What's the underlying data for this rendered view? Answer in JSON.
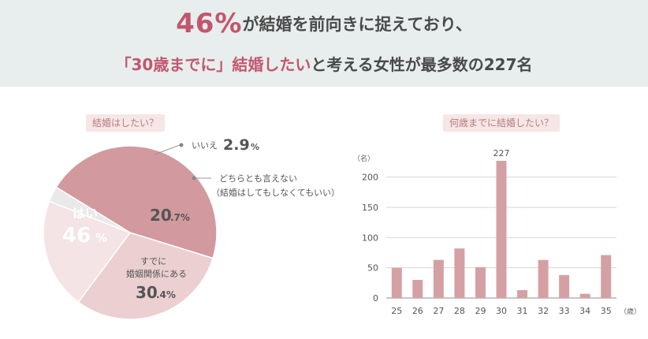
{
  "headline": {
    "line1_big": "46%",
    "line1_rest": "が結婚を前向きに捉えており、",
    "line2_accent": "「30歳までに」結婚したい",
    "line2_rest": "と考える女性が最多数の227名"
  },
  "colors": {
    "header_bg": "#e7eeed",
    "accent": "#c2566f",
    "pie_yes": "#d29a9e",
    "pie_married": "#ebcfd1",
    "pie_either": "#f4e4e5",
    "pie_no": "#e9e9e9",
    "bar": "#d5a0a4"
  },
  "pie_section": {
    "tag": "結婚はしたい？",
    "labels": {
      "yes_name": "はい",
      "yes_value": "46",
      "yes_unit": "%",
      "no_name": "いいえ",
      "no_value": "2.9",
      "no_unit": "%",
      "either_line1": "どちらとも言えない",
      "either_line2": "（結婚はしてもしなくてもいい）",
      "either_value": "20",
      "either_decimal": ".7%",
      "married_line1": "すでに",
      "married_line2": "婚姻関係にある",
      "married_value": "30",
      "married_decimal": ".4%"
    }
  },
  "bar_section": {
    "tag": "何歳までに結婚したい？"
  },
  "chart_data": [
    {
      "type": "pie",
      "title": "結婚はしたい？",
      "slices": [
        {
          "label": "はい",
          "value": 46
        },
        {
          "label": "すでに婚姻関係にある",
          "value": 30.4
        },
        {
          "label": "どちらとも言えない（結婚はしてもしなくてもいい）",
          "value": 20.7
        },
        {
          "label": "いいえ",
          "value": 2.9
        }
      ]
    },
    {
      "type": "bar",
      "title": "何歳までに結婚したい？",
      "categories": [
        "25",
        "26",
        "27",
        "28",
        "29",
        "30",
        "31",
        "32",
        "33",
        "34",
        "35"
      ],
      "values": [
        50,
        30,
        63,
        82,
        51,
        227,
        13,
        63,
        38,
        7,
        71
      ],
      "data_labels": {
        "30": "227"
      },
      "ylim": [
        0,
        240
      ],
      "yticks": [
        0,
        50,
        100,
        150,
        200
      ],
      "y_unit": "（名）",
      "x_unit": "（歳）",
      "grid": true
    }
  ]
}
